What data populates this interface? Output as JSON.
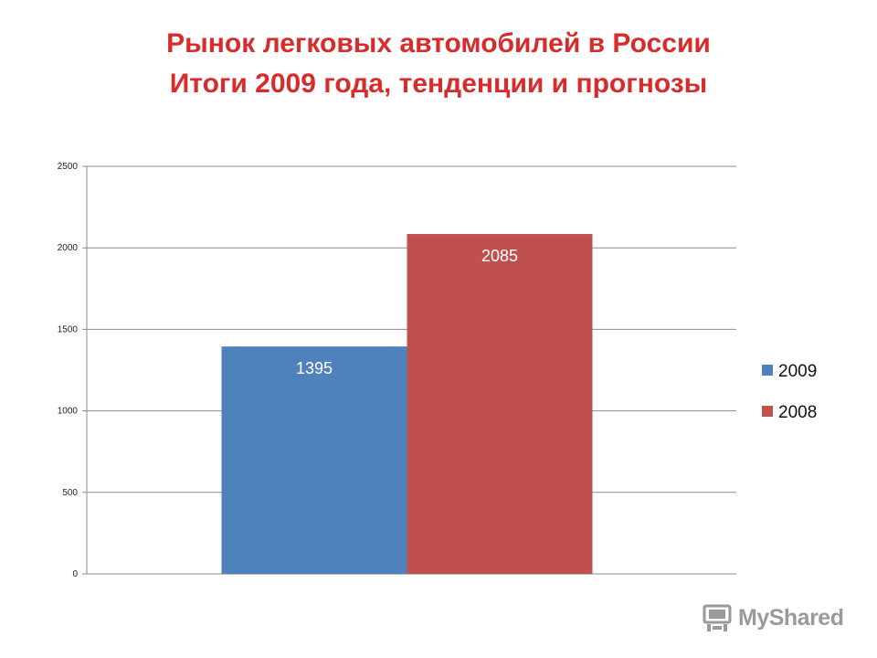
{
  "title": {
    "line1": "Рынок легковых автомобилей в России",
    "line2": "Итоги 2009 года, тенденции и прогнозы"
  },
  "chart_data": {
    "type": "bar",
    "categories": [
      ""
    ],
    "series": [
      {
        "name": "2009",
        "values": [
          1395
        ],
        "color": "#4f81bd"
      },
      {
        "name": "2008",
        "values": [
          2085
        ],
        "color": "#c0504d"
      }
    ],
    "ylim": [
      0,
      2500
    ],
    "yticks": [
      0,
      500,
      1000,
      1500,
      2000,
      2500
    ],
    "grid": true,
    "legend": "right"
  },
  "watermark": {
    "text": "MyShared"
  }
}
